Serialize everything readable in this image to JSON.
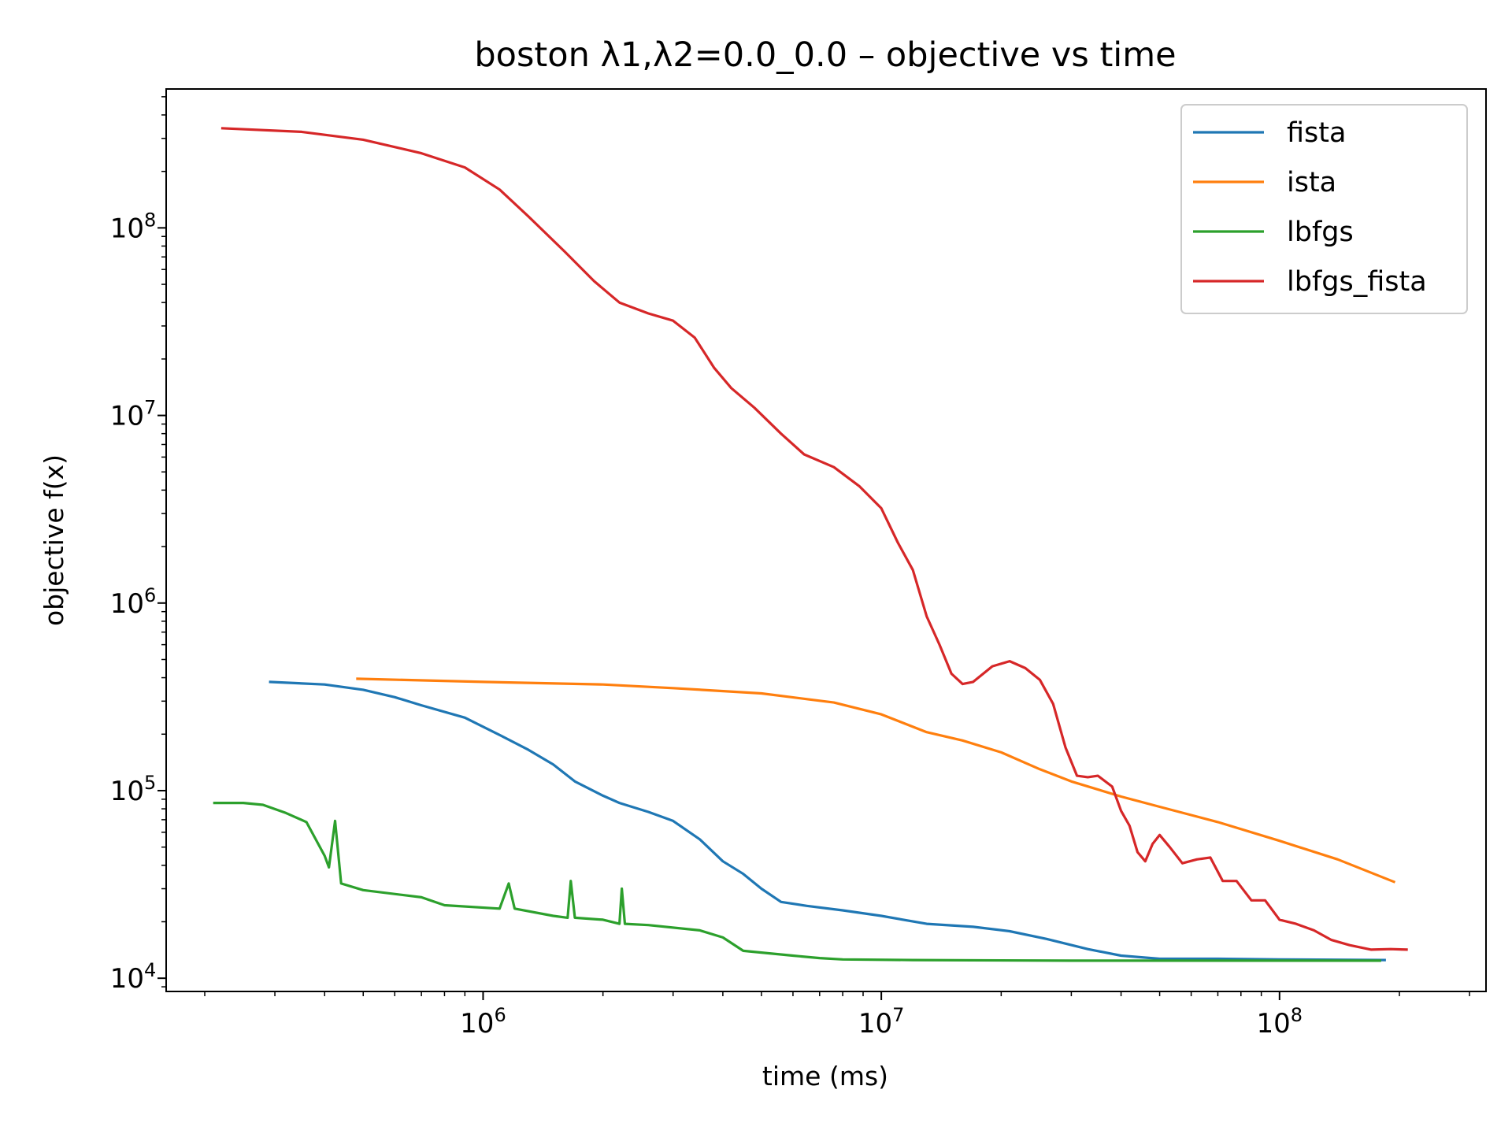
{
  "chart_data": {
    "type": "line",
    "title": "boston   λ1,λ2=0.0_0.0  –  objective vs time",
    "xlabel": "time (ms)",
    "ylabel": "objective f(x)",
    "xscale": "log",
    "yscale": "log",
    "xlim": [
      160000,
      330000000
    ],
    "ylim": [
      8500,
      550000000
    ],
    "x_ticks": [
      {
        "value": 1000000,
        "base": "10",
        "exp": "6"
      },
      {
        "value": 10000000,
        "base": "10",
        "exp": "7"
      },
      {
        "value": 100000000,
        "base": "10",
        "exp": "8"
      }
    ],
    "y_ticks": [
      {
        "value": 10000,
        "base": "10",
        "exp": "4"
      },
      {
        "value": 100000,
        "base": "10",
        "exp": "5"
      },
      {
        "value": 1000000,
        "base": "10",
        "exp": "6"
      },
      {
        "value": 10000000,
        "base": "10",
        "exp": "7"
      },
      {
        "value": 100000000,
        "base": "10",
        "exp": "8"
      }
    ],
    "grid": false,
    "legend_position": "top-right",
    "series": [
      {
        "name": "fista",
        "color": "#1f77b4",
        "points": [
          [
            290000,
            380000
          ],
          [
            400000,
            368000
          ],
          [
            500000,
            345000
          ],
          [
            600000,
            315000
          ],
          [
            700000,
            285000
          ],
          [
            900000,
            245000
          ],
          [
            1100000,
            198000
          ],
          [
            1300000,
            165000
          ],
          [
            1500000,
            138000
          ],
          [
            1700000,
            112000
          ],
          [
            2000000,
            94000
          ],
          [
            2200000,
            86000
          ],
          [
            2600000,
            77000
          ],
          [
            3000000,
            69000
          ],
          [
            3500000,
            55000
          ],
          [
            4000000,
            42000
          ],
          [
            4500000,
            36000
          ],
          [
            5000000,
            30000
          ],
          [
            5600000,
            25500
          ],
          [
            6500000,
            24300
          ],
          [
            8000000,
            23000
          ],
          [
            10000000,
            21500
          ],
          [
            13000000,
            19500
          ],
          [
            17000000,
            18800
          ],
          [
            21000000,
            17800
          ],
          [
            26000000,
            16200
          ],
          [
            33000000,
            14300
          ],
          [
            40000000,
            13200
          ],
          [
            50000000,
            12700
          ],
          [
            70000000,
            12700
          ],
          [
            100000000,
            12600
          ],
          [
            185000000,
            12500
          ]
        ]
      },
      {
        "name": "ista",
        "color": "#ff7f0e",
        "points": [
          [
            480000,
            395000
          ],
          [
            1000000,
            380000
          ],
          [
            2000000,
            368000
          ],
          [
            3000000,
            352000
          ],
          [
            5000000,
            330000
          ],
          [
            7600000,
            295000
          ],
          [
            10000000,
            255000
          ],
          [
            13000000,
            205000
          ],
          [
            16000000,
            185000
          ],
          [
            20000000,
            160000
          ],
          [
            25000000,
            130000
          ],
          [
            30000000,
            112000
          ],
          [
            40000000,
            93000
          ],
          [
            50000000,
            82000
          ],
          [
            70000000,
            68000
          ],
          [
            100000000,
            54000
          ],
          [
            140000000,
            43000
          ],
          [
            195000000,
            32500
          ]
        ]
      },
      {
        "name": "lbfgs",
        "color": "#2ca02c",
        "points": [
          [
            210000,
            86000
          ],
          [
            250000,
            86000
          ],
          [
            280000,
            84000
          ],
          [
            320000,
            76000
          ],
          [
            360000,
            68000
          ],
          [
            400000,
            45000
          ],
          [
            410000,
            39000
          ],
          [
            425000,
            69000
          ],
          [
            440000,
            32000
          ],
          [
            500000,
            29500
          ],
          [
            700000,
            27000
          ],
          [
            800000,
            24500
          ],
          [
            1100000,
            23500
          ],
          [
            1160000,
            32000
          ],
          [
            1200000,
            23500
          ],
          [
            1500000,
            21500
          ],
          [
            1630000,
            21000
          ],
          [
            1660000,
            33000
          ],
          [
            1700000,
            21000
          ],
          [
            2000000,
            20500
          ],
          [
            2200000,
            19500
          ],
          [
            2230000,
            30000
          ],
          [
            2270000,
            19500
          ],
          [
            2600000,
            19200
          ],
          [
            3500000,
            18000
          ],
          [
            4000000,
            16500
          ],
          [
            4500000,
            14000
          ],
          [
            5000000,
            13700
          ],
          [
            6000000,
            13200
          ],
          [
            7000000,
            12800
          ],
          [
            8000000,
            12600
          ],
          [
            12000000,
            12500
          ],
          [
            30000000,
            12400
          ],
          [
            100000000,
            12400
          ],
          [
            180000000,
            12400
          ]
        ]
      },
      {
        "name": "lbfgs_fista",
        "color": "#d62728",
        "points": [
          [
            220000,
            340000000
          ],
          [
            350000,
            325000000
          ],
          [
            500000,
            295000000
          ],
          [
            700000,
            250000000
          ],
          [
            900000,
            210000000
          ],
          [
            1100000,
            160000000
          ],
          [
            1300000,
            115000000
          ],
          [
            1600000,
            75000000
          ],
          [
            1900000,
            52000000
          ],
          [
            2200000,
            40000000
          ],
          [
            2600000,
            35000000
          ],
          [
            3000000,
            32000000
          ],
          [
            3400000,
            26000000
          ],
          [
            3800000,
            18000000
          ],
          [
            4200000,
            14000000
          ],
          [
            4800000,
            11000000
          ],
          [
            5600000,
            8000000
          ],
          [
            6400000,
            6200000
          ],
          [
            7600000,
            5300000
          ],
          [
            8800000,
            4200000
          ],
          [
            10000000,
            3200000
          ],
          [
            11000000,
            2100000
          ],
          [
            12000000,
            1500000
          ],
          [
            13000000,
            850000
          ],
          [
            14000000,
            600000
          ],
          [
            15000000,
            420000
          ],
          [
            16000000,
            370000
          ],
          [
            17000000,
            380000
          ],
          [
            19000000,
            460000
          ],
          [
            21000000,
            490000
          ],
          [
            23000000,
            450000
          ],
          [
            25000000,
            390000
          ],
          [
            27000000,
            290000
          ],
          [
            29000000,
            170000
          ],
          [
            31000000,
            120000
          ],
          [
            33000000,
            118000
          ],
          [
            35000000,
            120000
          ],
          [
            38000000,
            105000
          ],
          [
            40000000,
            78000
          ],
          [
            42000000,
            65000
          ],
          [
            44000000,
            47000
          ],
          [
            46000000,
            42000
          ],
          [
            48000000,
            52000
          ],
          [
            50000000,
            58000
          ],
          [
            53000000,
            50000
          ],
          [
            57000000,
            41000
          ],
          [
            62000000,
            43000
          ],
          [
            67000000,
            44000
          ],
          [
            72000000,
            33000
          ],
          [
            78000000,
            33000
          ],
          [
            85000000,
            26000
          ],
          [
            92000000,
            26000
          ],
          [
            100000000,
            20500
          ],
          [
            110000000,
            19500
          ],
          [
            122000000,
            18000
          ],
          [
            135000000,
            16000
          ],
          [
            150000000,
            15000
          ],
          [
            170000000,
            14200
          ],
          [
            190000000,
            14300
          ],
          [
            210000000,
            14200
          ]
        ]
      }
    ]
  }
}
